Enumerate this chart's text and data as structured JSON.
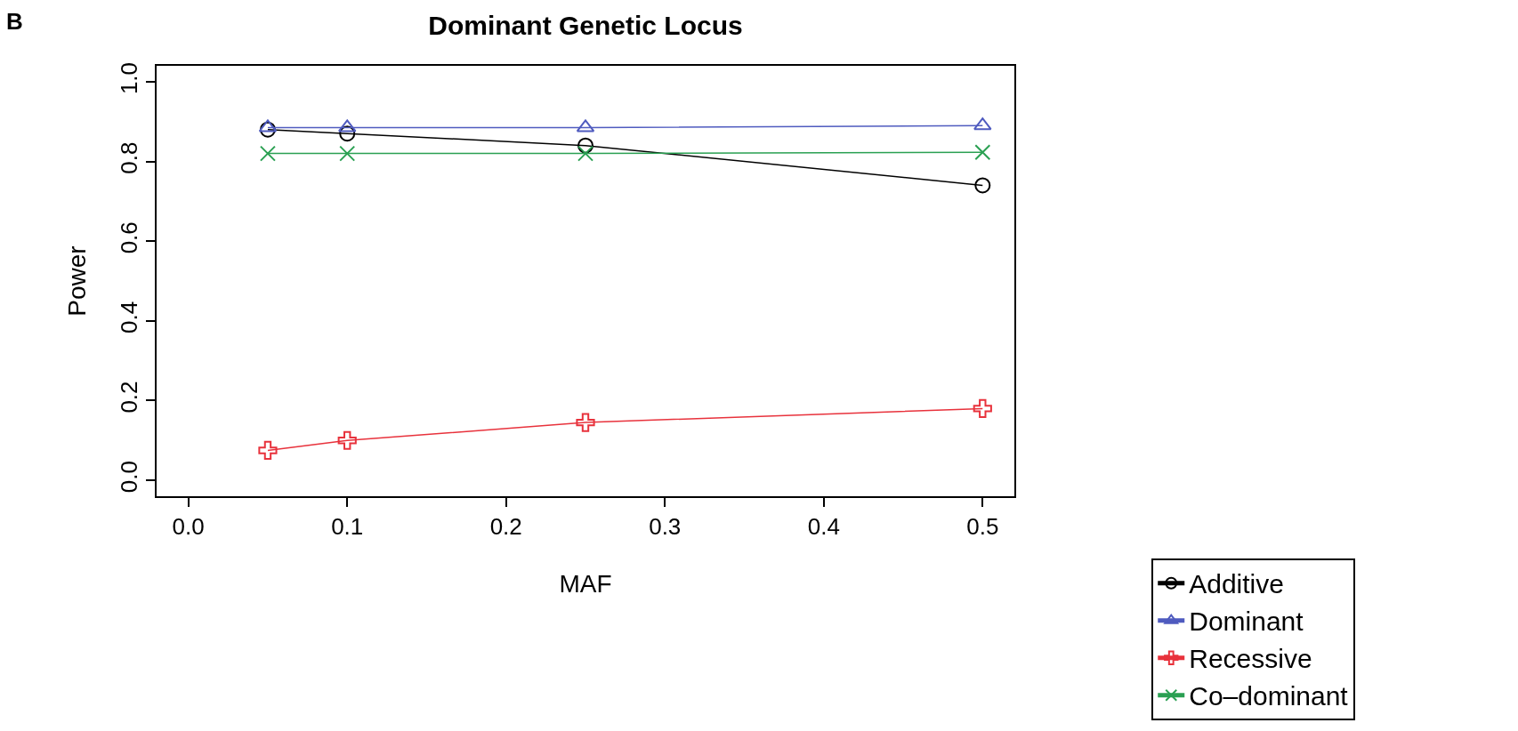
{
  "chart_data": {
    "type": "line",
    "title": "Dominant Genetic Locus",
    "xlabel": "MAF",
    "ylabel": "Power",
    "annotations": [
      "B"
    ],
    "x": [
      0.05,
      0.1,
      0.25,
      0.5
    ],
    "series": [
      {
        "name": "Additive",
        "color": "#000000",
        "marker": "circle",
        "values": [
          0.88,
          0.87,
          0.84,
          0.74
        ]
      },
      {
        "name": "Dominant",
        "color": "#4f5bbf",
        "marker": "triangle",
        "values": [
          0.885,
          0.885,
          0.885,
          0.89
        ]
      },
      {
        "name": "Recessive",
        "color": "#e8323c",
        "marker": "cross",
        "values": [
          0.075,
          0.1,
          0.145,
          0.18
        ]
      },
      {
        "name": "Co–dominant",
        "color": "#2aa052",
        "marker": "x",
        "values": [
          0.82,
          0.82,
          0.82,
          0.823
        ]
      }
    ],
    "xlim": [
      -0.02,
      0.52
    ],
    "xticks": [
      {
        "value": 0,
        "label": "0.0"
      },
      {
        "value": 0.1,
        "label": "0.1"
      },
      {
        "value": 0.2,
        "label": "0.2"
      },
      {
        "value": 0.3,
        "label": "0.3"
      },
      {
        "value": 0.4,
        "label": "0.4"
      },
      {
        "value": 0.5,
        "label": "0.5"
      }
    ],
    "ylim": [
      -0.04,
      1.04
    ],
    "yticks": [
      {
        "value": 0,
        "label": "0.0"
      },
      {
        "value": 0.2,
        "label": "0.2"
      },
      {
        "value": 0.4,
        "label": "0.4"
      },
      {
        "value": 0.6,
        "label": "0.6"
      },
      {
        "value": 0.8,
        "label": "0.8"
      },
      {
        "value": 1,
        "label": "1.0"
      }
    ],
    "legend": "bottom right"
  }
}
